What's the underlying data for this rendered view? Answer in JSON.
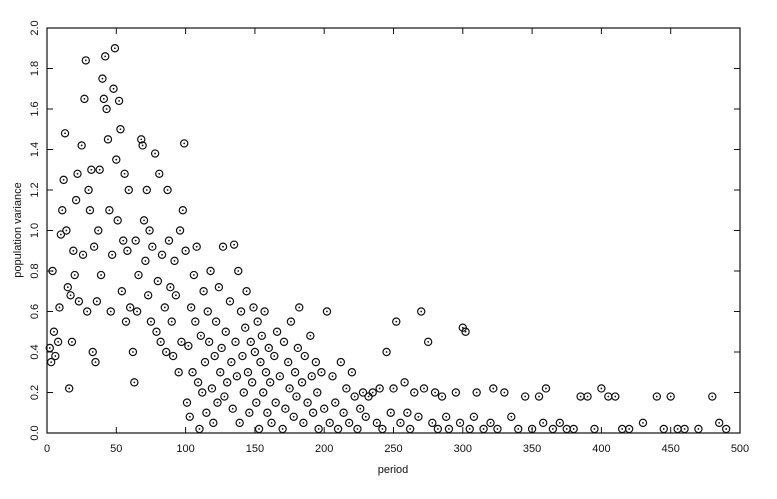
{
  "chart_data": {
    "type": "scatter",
    "x_label": "period",
    "y_label": "population variance",
    "xlim": [
      0,
      500
    ],
    "xticks": [
      0,
      50,
      100,
      150,
      200,
      250,
      300,
      350,
      400,
      450,
      500
    ],
    "ylim": [
      0,
      2
    ],
    "yticks": [
      {
        "value": 0,
        "label": "0.0"
      },
      0.2,
      0.4,
      0.6,
      0.8,
      {
        "value": 1,
        "label": "1.0"
      },
      1.2,
      1.4,
      1.6,
      1.8,
      {
        "value": 2,
        "label": "2.0"
      }
    ],
    "color": "#111111",
    "x": [
      2,
      3,
      4,
      5,
      6,
      8,
      9,
      10,
      11,
      12,
      13,
      14,
      15,
      16,
      17,
      18,
      19,
      20,
      21,
      22,
      23,
      25,
      26,
      27,
      28,
      29,
      30,
      31,
      32,
      33,
      34,
      35,
      36,
      37,
      38,
      39,
      40,
      41,
      42,
      43,
      44,
      45,
      46,
      47,
      48,
      49,
      50,
      51,
      52,
      53,
      54,
      55,
      56,
      57,
      58,
      59,
      60,
      62,
      63,
      64,
      65,
      66,
      68,
      69,
      70,
      71,
      72,
      73,
      74,
      75,
      76,
      78,
      79,
      80,
      81,
      82,
      83,
      85,
      86,
      87,
      88,
      89,
      90,
      91,
      92,
      93,
      95,
      96,
      97,
      98,
      99,
      100,
      101,
      102,
      103,
      104,
      105,
      106,
      107,
      108,
      109,
      110,
      111,
      112,
      113,
      114,
      115,
      116,
      117,
      118,
      119,
      120,
      121,
      122,
      123,
      124,
      125,
      126,
      127,
      128,
      129,
      130,
      132,
      133,
      134,
      135,
      136,
      137,
      138,
      139,
      140,
      141,
      142,
      143,
      144,
      145,
      146,
      147,
      148,
      149,
      150,
      151,
      152,
      153,
      154,
      155,
      156,
      157,
      158,
      159,
      160,
      161,
      162,
      164,
      165,
      166,
      168,
      170,
      171,
      172,
      174,
      175,
      176,
      178,
      179,
      180,
      181,
      182,
      184,
      185,
      186,
      188,
      190,
      191,
      192,
      194,
      195,
      196,
      198,
      200,
      202,
      204,
      206,
      208,
      210,
      212,
      214,
      216,
      218,
      220,
      222,
      224,
      226,
      228,
      230,
      232,
      235,
      238,
      240,
      242,
      245,
      248,
      250,
      252,
      255,
      258,
      260,
      262,
      265,
      268,
      270,
      272,
      275,
      278,
      280,
      282,
      285,
      288,
      290,
      295,
      298,
      300,
      302,
      305,
      308,
      310,
      315,
      320,
      322,
      325,
      330,
      335,
      340,
      345,
      350,
      355,
      358,
      360,
      365,
      370,
      375,
      380,
      385,
      390,
      395,
      400,
      405,
      410,
      415,
      420,
      430,
      440,
      445,
      450,
      455,
      460,
      470,
      480,
      485,
      490
    ],
    "y": [
      0.42,
      0.35,
      0.8,
      0.5,
      0.38,
      0.45,
      0.62,
      0.98,
      1.1,
      1.25,
      1.48,
      1.0,
      0.72,
      0.22,
      0.68,
      0.45,
      0.9,
      0.78,
      1.15,
      1.28,
      0.65,
      1.42,
      0.88,
      1.65,
      1.84,
      0.6,
      1.2,
      1.1,
      1.3,
      0.4,
      0.92,
      0.35,
      0.65,
      1.0,
      1.3,
      0.78,
      1.75,
      1.65,
      1.86,
      1.6,
      1.45,
      1.1,
      0.6,
      0.88,
      1.7,
      1.9,
      1.35,
      1.05,
      1.64,
      1.5,
      0.7,
      0.95,
      1.28,
      0.55,
      0.9,
      1.2,
      0.62,
      0.4,
      0.25,
      0.95,
      0.6,
      0.78,
      1.45,
      1.42,
      1.05,
      0.85,
      1.2,
      0.68,
      1.0,
      0.55,
      0.92,
      1.38,
      0.5,
      0.75,
      1.28,
      0.45,
      0.88,
      0.62,
      0.4,
      1.2,
      0.95,
      0.72,
      0.55,
      0.38,
      0.85,
      0.68,
      0.3,
      1.0,
      0.45,
      1.1,
      1.43,
      0.9,
      0.15,
      0.43,
      0.08,
      0.62,
      0.3,
      0.78,
      0.55,
      0.92,
      0.25,
      0.02,
      0.48,
      0.2,
      0.7,
      0.35,
      0.1,
      0.6,
      0.45,
      0.8,
      0.22,
      0.05,
      0.38,
      0.55,
      0.15,
      0.72,
      0.3,
      0.42,
      0.92,
      0.18,
      0.5,
      0.25,
      0.65,
      0.35,
      0.12,
      0.93,
      0.45,
      0.28,
      0.8,
      0.05,
      0.6,
      0.38,
      0.2,
      0.52,
      0.7,
      0.3,
      0.1,
      0.45,
      0.25,
      0.62,
      0.4,
      0.15,
      0.55,
      0.02,
      0.35,
      0.48,
      0.2,
      0.6,
      0.3,
      0.1,
      0.42,
      0.25,
      0.05,
      0.38,
      0.15,
      0.5,
      0.28,
      0.02,
      0.45,
      0.12,
      0.35,
      0.22,
      0.55,
      0.08,
      0.3,
      0.18,
      0.42,
      0.62,
      0.25,
      0.05,
      0.38,
      0.15,
      0.48,
      0.28,
      0.1,
      0.35,
      0.2,
      0.02,
      0.3,
      0.12,
      0.6,
      0.05,
      0.28,
      0.15,
      0.02,
      0.35,
      0.1,
      0.22,
      0.05,
      0.3,
      0.18,
      0.02,
      0.12,
      0.2,
      0.08,
      0.18,
      0.2,
      0.05,
      0.22,
      0.02,
      0.4,
      0.1,
      0.22,
      0.55,
      0.05,
      0.25,
      0.1,
      0.02,
      0.2,
      0.08,
      0.6,
      0.22,
      0.45,
      0.05,
      0.2,
      0.02,
      0.18,
      0.08,
      0.02,
      0.2,
      0.05,
      0.52,
      0.5,
      0.02,
      0.08,
      0.2,
      0.02,
      0.05,
      0.22,
      0.02,
      0.2,
      0.08,
      0.02,
      0.18,
      0.02,
      0.18,
      0.05,
      0.22,
      0.02,
      0.05,
      0.02,
      0.02,
      0.18,
      0.18,
      0.02,
      0.22,
      0.18,
      0.18,
      0.02,
      0.02,
      0.05,
      0.18,
      0.02,
      0.18,
      0.02,
      0.02,
      0.02,
      0.18,
      0.05,
      0.02
    ]
  }
}
